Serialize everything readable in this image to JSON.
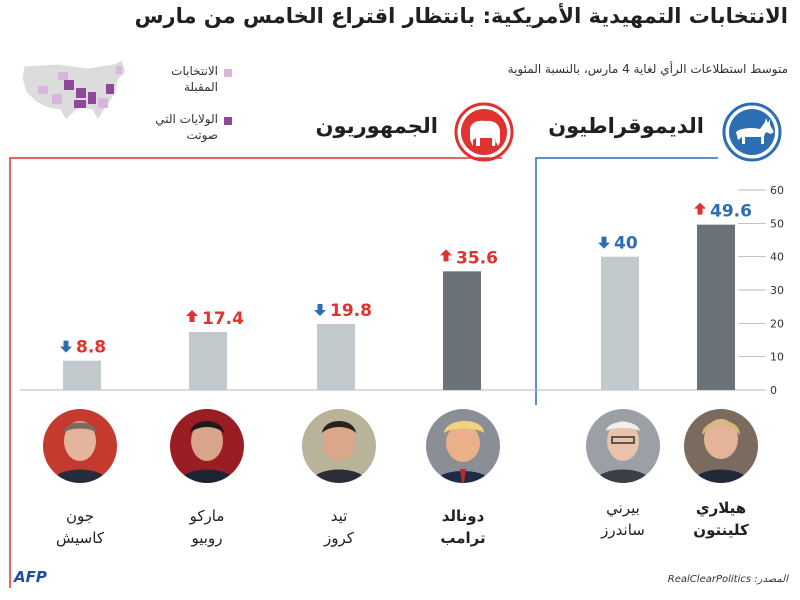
{
  "title": "الانتخابات التمهيدية الأمريكية: بانتظار اقتراع الخامس من مارس",
  "subtitle": "متوسط استطلاعات الرأي لغاية 4 مارس، بالنسبة المئوية",
  "legend": {
    "upcoming_label": "الانتخابات المقبلة",
    "voted_label": "الولايات التي صوتت",
    "upcoming_color": "#d7b8dc",
    "voted_color": "#8e4a98"
  },
  "parties": {
    "democrats": {
      "label": "الديموقراطيون",
      "icon": "donkey-icon",
      "color": "#2c6db3"
    },
    "republicans": {
      "label": "الجمهوريون",
      "icon": "elephant-icon",
      "color": "#e0322f"
    }
  },
  "chart_data": {
    "type": "bar",
    "title": "متوسط استطلاعات الرأي لغاية 4 مارس، بالنسبة المئوية",
    "ylim": [
      0,
      60
    ],
    "yticks": [
      "0",
      "10",
      "20",
      "30",
      "40",
      "50",
      "60"
    ],
    "groups": [
      {
        "party": "الديموقراطيون",
        "candidates": [
          {
            "name_line1": "هيلاري",
            "name_line2": "كلينتون",
            "value": 49.6,
            "label": "49.6",
            "trend": "up",
            "leader": true
          },
          {
            "name_line1": "بيرني",
            "name_line2": "ساندرز",
            "value": 40,
            "label": "40",
            "trend": "down",
            "leader": false
          }
        ]
      },
      {
        "party": "الجمهوريون",
        "candidates": [
          {
            "name_line1": "دونالد",
            "name_line2": "ترامب",
            "value": 35.6,
            "label": "35.6",
            "trend": "up",
            "leader": true
          },
          {
            "name_line1": "تيد",
            "name_line2": "كروز",
            "value": 19.8,
            "label": "19.8",
            "trend": "down",
            "leader": false
          },
          {
            "name_line1": "ماركو",
            "name_line2": "روبيو",
            "value": 17.4,
            "label": "17.4",
            "trend": "up",
            "leader": false
          },
          {
            "name_line1": "جون",
            "name_line2": "كاسيش",
            "value": 8.8,
            "label": "8.8",
            "trend": "down",
            "leader": false
          }
        ]
      }
    ]
  },
  "colors": {
    "leader_bar": "#6b7378",
    "other_bar": "#c2c9cc",
    "up_arrow": "#e0322f",
    "down_arrow": "#2c6db3"
  },
  "source": {
    "label": "المصدر:",
    "name": "RealClearPolitics"
  },
  "logo": "AFP"
}
